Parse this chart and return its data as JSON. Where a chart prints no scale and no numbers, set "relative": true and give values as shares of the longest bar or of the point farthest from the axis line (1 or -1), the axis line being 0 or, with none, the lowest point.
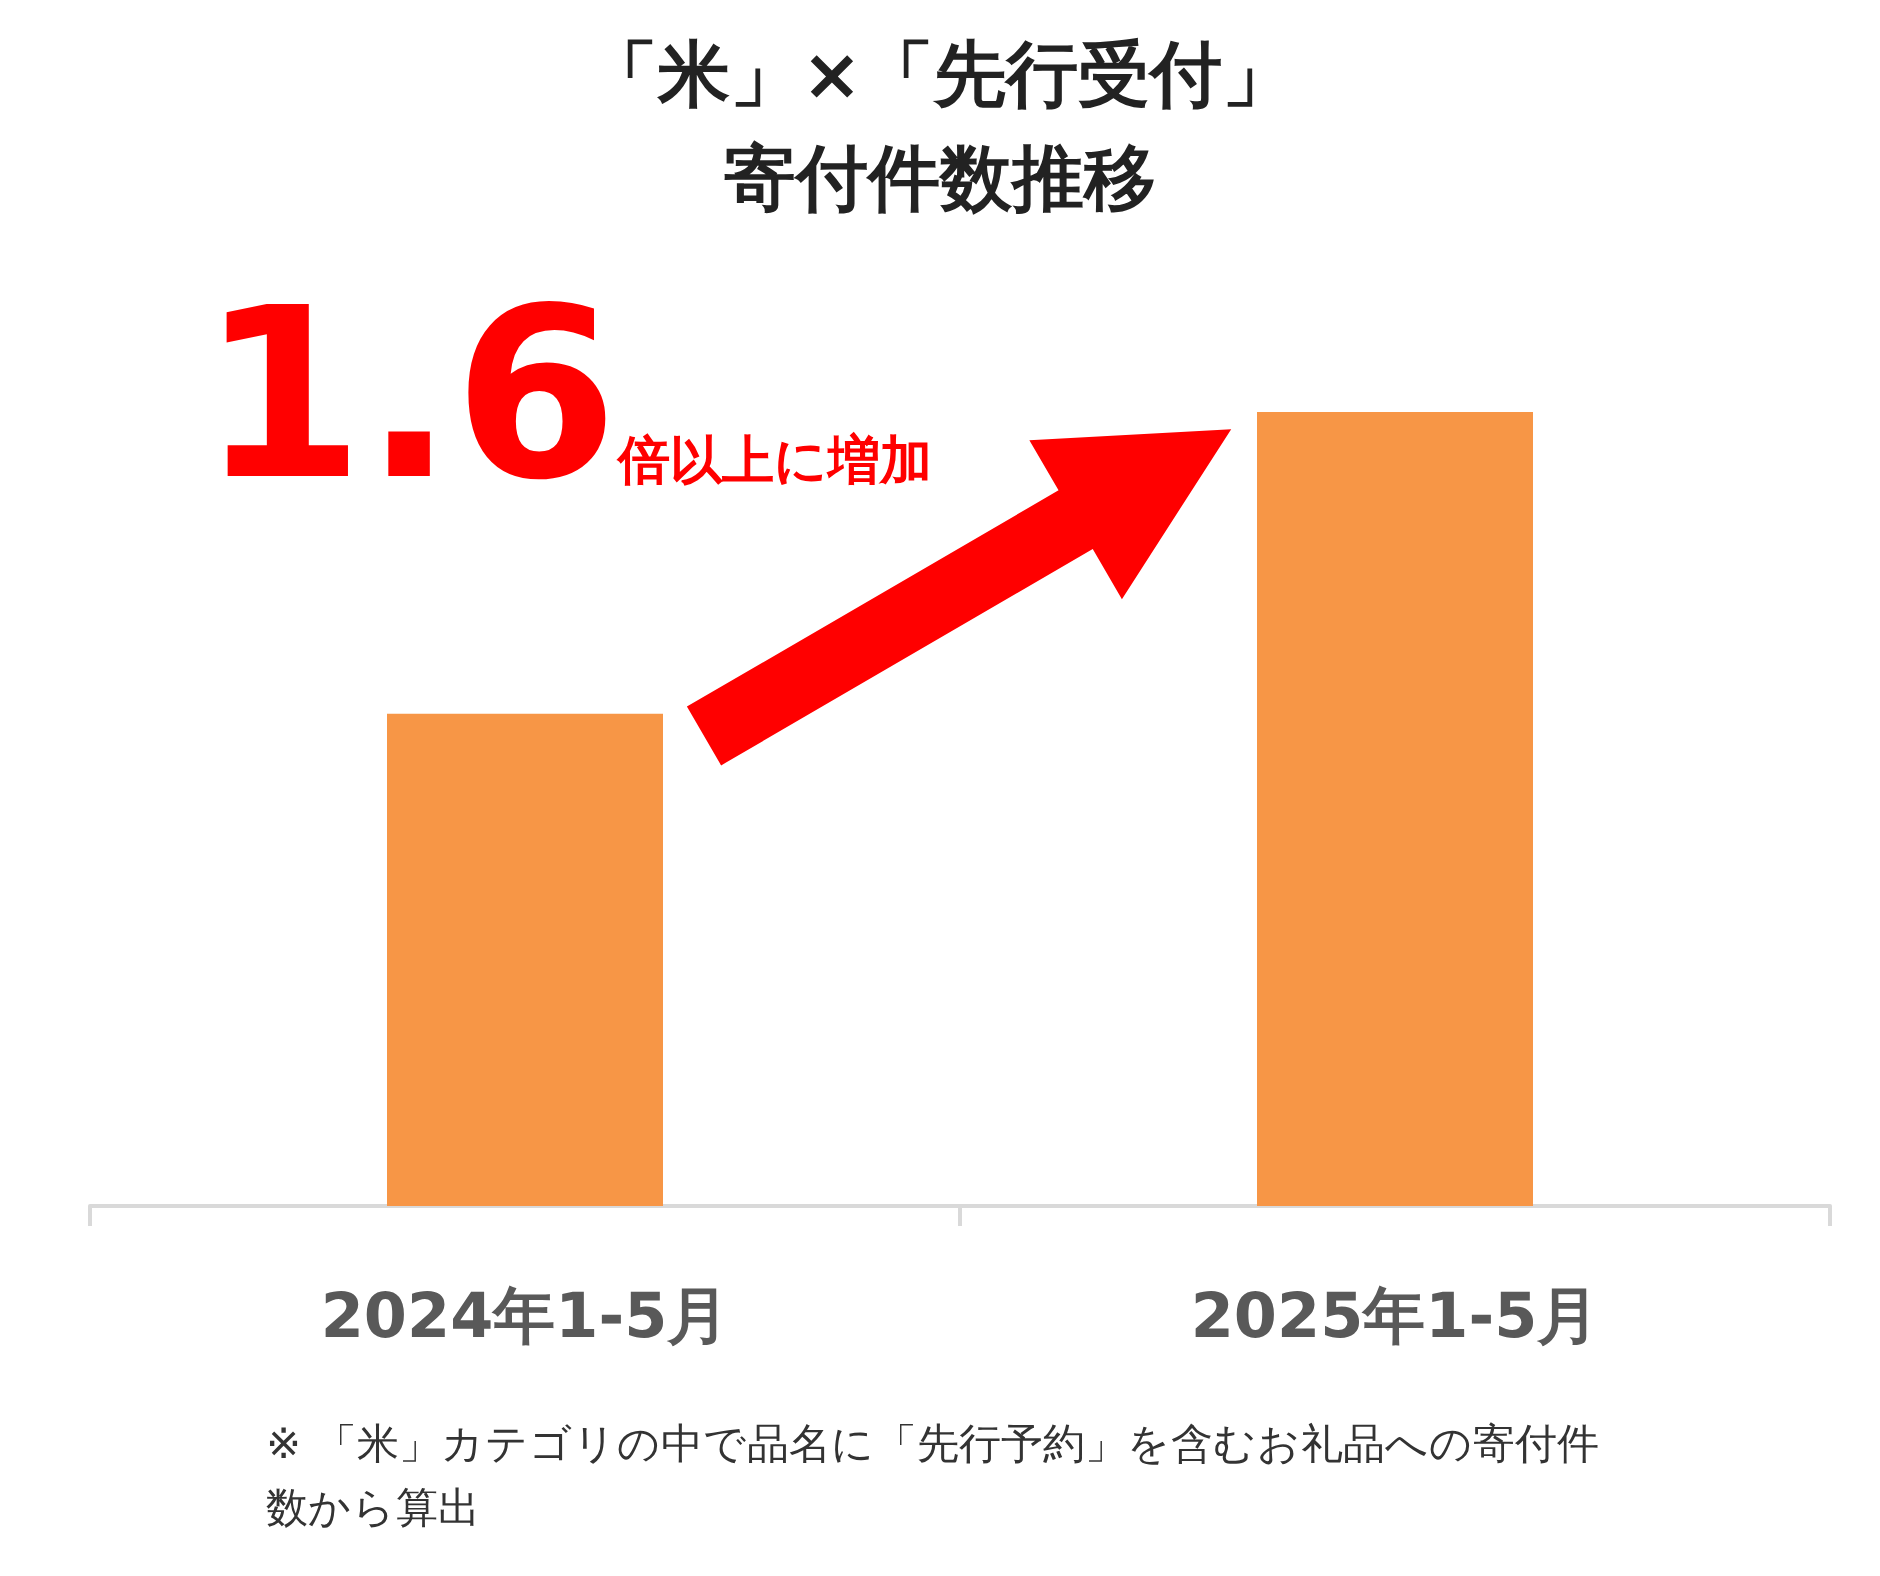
{
  "chart_data": {
    "type": "bar",
    "title": "「米」×「先行受付」",
    "subtitle": "寄付件数推移",
    "categories": [
      "2024年1-5月",
      "2025年1-5月"
    ],
    "values": [
      0.62,
      1
    ],
    "color": "#f79646",
    "relative": true,
    "grid": false,
    "annotations": [
      "1.6倍以上に増加",
      "※ 「米」カテゴリの中で品名に「先行予約」を含むお礼品への寄付件数から算出"
    ]
  }
}
